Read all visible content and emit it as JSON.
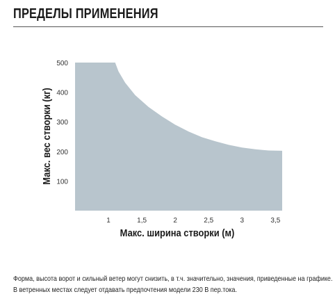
{
  "title": "ПРЕДЕЛЫ ПРИМЕНЕНИЯ",
  "note": "Форма, высота ворот и сильный ветер могут снизить, в т.ч. значительно, значения, приведенные на графике. В ветренных местах следует отдавать предпочтения модели 230 В пер.тока.",
  "chart_data": {
    "type": "area",
    "xlabel": "Макс. ширина створки (м)",
    "ylabel": "Макс. вес створки (кг)",
    "xlim": [
      0.5,
      3.6
    ],
    "ylim": [
      0,
      500
    ],
    "x_ticks": [
      1,
      1.5,
      2,
      2.5,
      3,
      3.5
    ],
    "x_tick_labels": [
      "1",
      "1,5",
      "2",
      "2,5",
      "3",
      "3,5"
    ],
    "y_ticks": [
      100,
      200,
      300,
      400,
      500
    ],
    "y_tick_labels": [
      "100",
      "200",
      "300",
      "400",
      "500"
    ],
    "grid": false,
    "fill_color": "#b8c5cd",
    "series": [
      {
        "x": [
          0.5,
          1.1,
          1.15,
          1.25,
          1.4,
          1.6,
          1.8,
          2.0,
          2.2,
          2.4,
          2.6,
          2.8,
          3.0,
          3.2,
          3.4,
          3.6
        ],
        "y": [
          500,
          500,
          470,
          432,
          390,
          350,
          318,
          290,
          267,
          248,
          234,
          222,
          213,
          207,
          203,
          202
        ]
      }
    ]
  }
}
